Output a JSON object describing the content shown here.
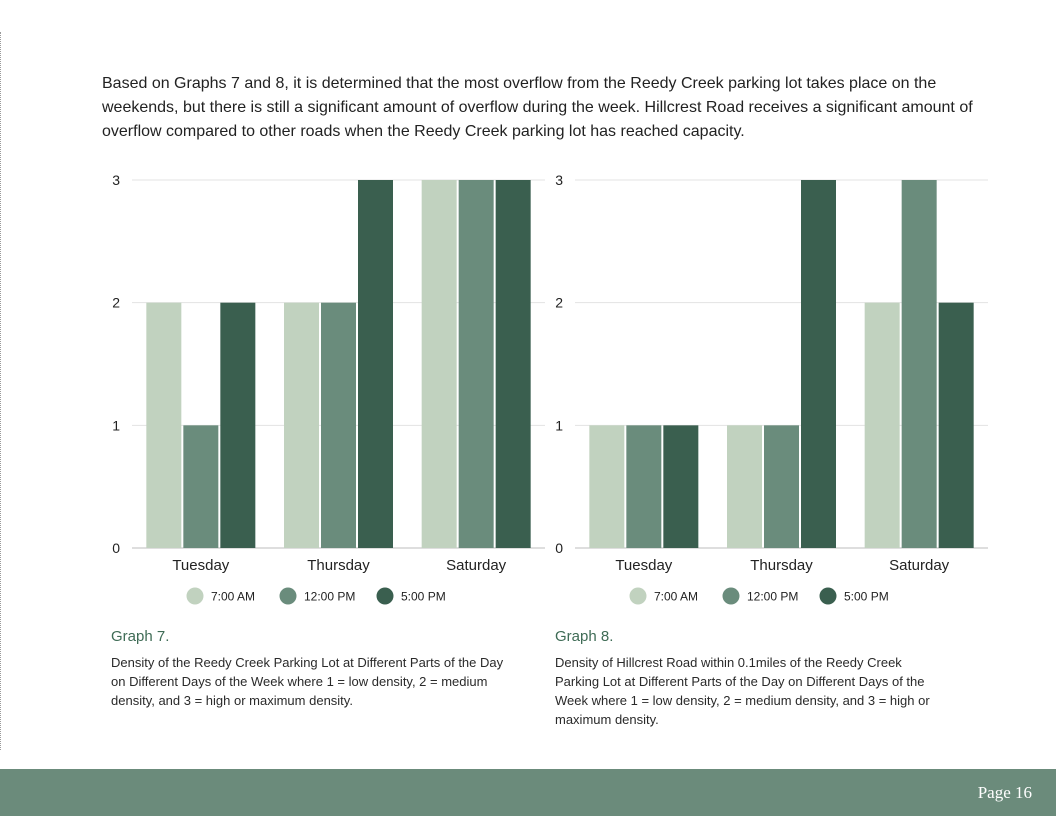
{
  "intro_text": "Based on Graphs 7 and 8, it is determined that the most overflow from the Reedy Creek parking lot takes place on the weekends, but there is still a significant amount of overflow during the week. Hillcrest Road receives a significant amount of overflow compared to other roads when the Reedy Creek parking lot has reached capacity.",
  "colors": {
    "light": "#c1d2bf",
    "mid": "#6a8c7c",
    "dark": "#3a5f4f",
    "footer": "#6b8b7b",
    "caption": "#3e6b55"
  },
  "chart_data": [
    {
      "type": "bar",
      "title": "",
      "categories": [
        "Tuesday",
        "Thursday",
        "Saturday"
      ],
      "series": [
        {
          "name": "7:00 AM",
          "values": [
            2,
            2,
            3
          ]
        },
        {
          "name": "12:00 PM",
          "values": [
            1,
            2,
            3
          ]
        },
        {
          "name": "5:00 PM",
          "values": [
            2,
            3,
            3
          ]
        }
      ],
      "ylim": [
        0,
        3
      ],
      "yticks": [
        "0",
        "1",
        "2",
        "3"
      ],
      "xlabel": "",
      "ylabel": "",
      "grid": true,
      "legend": "bottom"
    },
    {
      "type": "bar",
      "title": "",
      "categories": [
        "Tuesday",
        "Thursday",
        "Saturday"
      ],
      "series": [
        {
          "name": "7:00 AM",
          "values": [
            1,
            1,
            2
          ]
        },
        {
          "name": "12:00 PM",
          "values": [
            1,
            1,
            3
          ]
        },
        {
          "name": "5:00 PM",
          "values": [
            1,
            3,
            2
          ]
        }
      ],
      "ylim": [
        0,
        3
      ],
      "yticks": [
        "0",
        "1",
        "2",
        "3"
      ],
      "xlabel": "",
      "ylabel": "",
      "grid": true,
      "legend": "bottom"
    }
  ],
  "captions": [
    {
      "title": "Graph 7.",
      "text": "Density of the Reedy Creek Parking Lot at Different Parts of the Day on Different Days of the Week where 1 = low density, 2 = medium density, and 3 = high or maximum density."
    },
    {
      "title": "Graph 8.",
      "text": "Density of Hillcrest Road within 0.1miles of the Reedy Creek Parking Lot at Different Parts of the Day on Different Days of the Week where 1 = low density, 2 = medium density, and 3 = high or maximum density."
    }
  ],
  "footer": {
    "page_label": "Page 16"
  }
}
